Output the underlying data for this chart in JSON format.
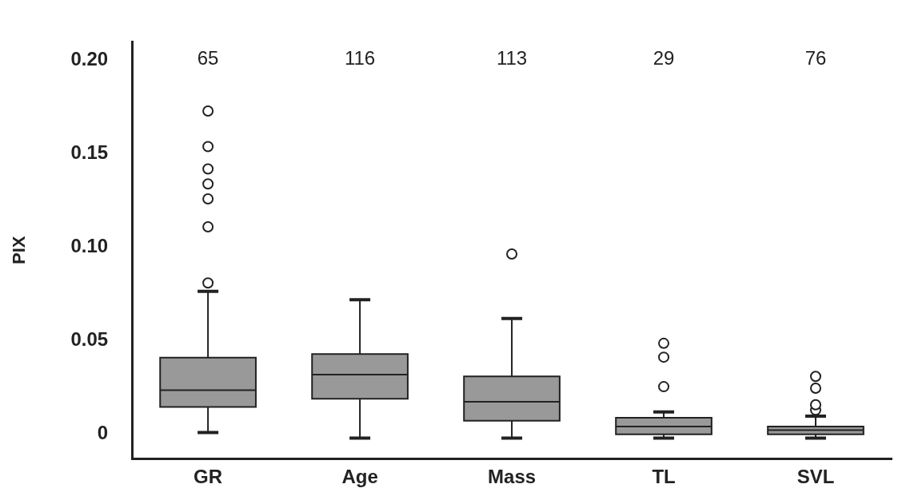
{
  "chart_data": {
    "type": "box",
    "ylabel": "PIX",
    "categories": [
      "GR",
      "Age",
      "Mass",
      "TL",
      "SVL"
    ],
    "color": "#999999",
    "boxes": [
      {
        "low": 0.001,
        "q1": 0.0147,
        "median": 0.0236,
        "q3": 0.041,
        "high": 0.0765,
        "outliers": [
          0.081,
          0.111,
          0.126,
          0.134,
          0.142,
          0.154,
          0.173
        ]
      },
      {
        "low": -0.002,
        "q1": 0.019,
        "median": 0.032,
        "q3": 0.043,
        "high": 0.072
      },
      {
        "low": -0.002,
        "q1": 0.0073,
        "median": 0.0174,
        "q3": 0.031,
        "high": 0.062,
        "outliers": [
          0.0965
        ]
      },
      {
        "low": -0.002,
        "q1": 0,
        "median": 0.0042,
        "q3": 0.0089,
        "high": 0.012,
        "outliers": [
          0.0255,
          0.0413,
          0.0487
        ]
      },
      {
        "low": -0.002,
        "q1": 0,
        "median": 0.0023,
        "q3": 0.0042,
        "high": 0.0097,
        "outliers": [
          0.013,
          0.0158,
          0.0247,
          0.031
        ]
      }
    ],
    "ylim": [
      -0.013,
      0.21
    ],
    "yticks": [
      {
        "value": 0,
        "label": "0"
      },
      0.05,
      {
        "value": 0.1,
        "label": "0.10"
      },
      0.15,
      {
        "value": 0.2,
        "label": "0.20"
      }
    ],
    "annotations": [
      "65",
      "116",
      "113",
      "29",
      "76"
    ],
    "grid": false,
    "legend": false,
    "marker": "circle"
  }
}
